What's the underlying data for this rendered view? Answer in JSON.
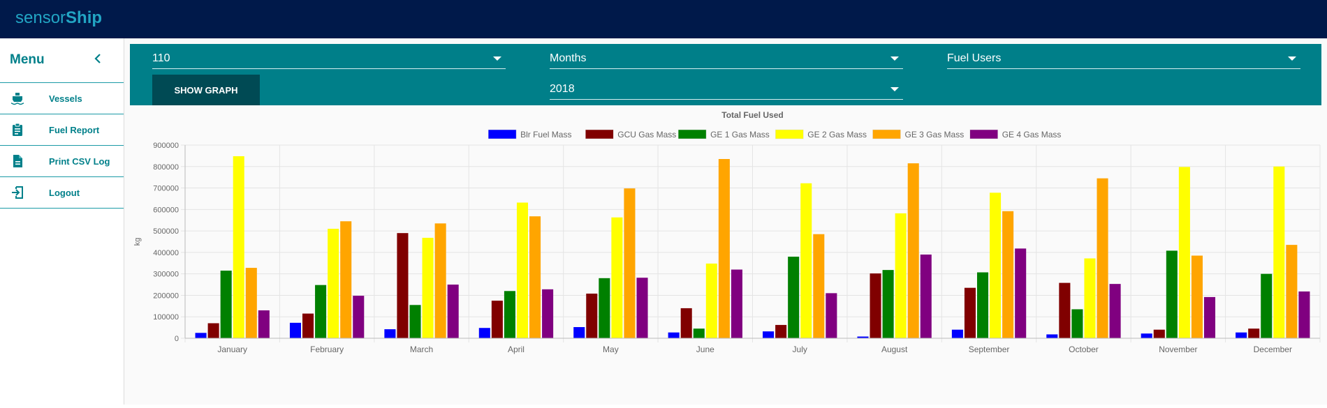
{
  "app": {
    "brand_light": "sensor",
    "brand_bold": "Ship"
  },
  "sidebar": {
    "title": "Menu",
    "collapse_icon": "chevron-left-icon",
    "items": [
      {
        "label": "Vessels",
        "icon": "ship-icon"
      },
      {
        "label": "Fuel Report",
        "icon": "clipboard-icon"
      },
      {
        "label": "Print CSV Log",
        "icon": "document-icon"
      },
      {
        "label": "Logout",
        "icon": "logout-icon"
      }
    ]
  },
  "filters": {
    "vessel": "110",
    "period": "Months",
    "users": "Fuel Users",
    "year": "2018",
    "show_graph_label": "SHOW GRAPH"
  },
  "colors": {
    "topbar": "#00194a",
    "accent": "#007f89",
    "button": "#004a54"
  },
  "chart_data": {
    "type": "bar",
    "title": "Total Fuel Used",
    "ylabel": "kg",
    "xlabel": "",
    "ylim": [
      0,
      900000
    ],
    "yticks": [
      0,
      100000,
      200000,
      300000,
      400000,
      500000,
      600000,
      700000,
      800000,
      900000
    ],
    "grid": true,
    "legend": "top-center",
    "categories": [
      "January",
      "February",
      "March",
      "April",
      "May",
      "June",
      "July",
      "August",
      "September",
      "October",
      "November",
      "December"
    ],
    "series": [
      {
        "name": "Blr Fuel Mass",
        "color": "#0000ff",
        "values": [
          25000,
          72000,
          42000,
          48000,
          52000,
          27000,
          32000,
          8000,
          40000,
          18000,
          22000,
          27000
        ]
      },
      {
        "name": "GCU Gas Mass",
        "color": "#800000",
        "values": [
          70000,
          115000,
          490000,
          175000,
          208000,
          140000,
          62000,
          302000,
          235000,
          258000,
          40000,
          45000
        ]
      },
      {
        "name": "GE 1 Gas Mass",
        "color": "#008000",
        "values": [
          315000,
          248000,
          155000,
          220000,
          280000,
          45000,
          380000,
          318000,
          307000,
          135000,
          408000,
          300000
        ]
      },
      {
        "name": "GE 2 Gas Mass",
        "color": "#ffff00",
        "values": [
          848000,
          510000,
          468000,
          632000,
          563000,
          348000,
          722000,
          582000,
          678000,
          372000,
          798000,
          800000
        ]
      },
      {
        "name": "GE 3 Gas Mass",
        "color": "#ffa500",
        "values": [
          328000,
          545000,
          535000,
          568000,
          698000,
          835000,
          485000,
          815000,
          592000,
          745000,
          385000,
          435000
        ]
      },
      {
        "name": "GE 4 Gas Mass",
        "color": "#800080",
        "values": [
          130000,
          198000,
          250000,
          228000,
          282000,
          320000,
          210000,
          390000,
          418000,
          253000,
          192000,
          218000
        ]
      }
    ]
  }
}
